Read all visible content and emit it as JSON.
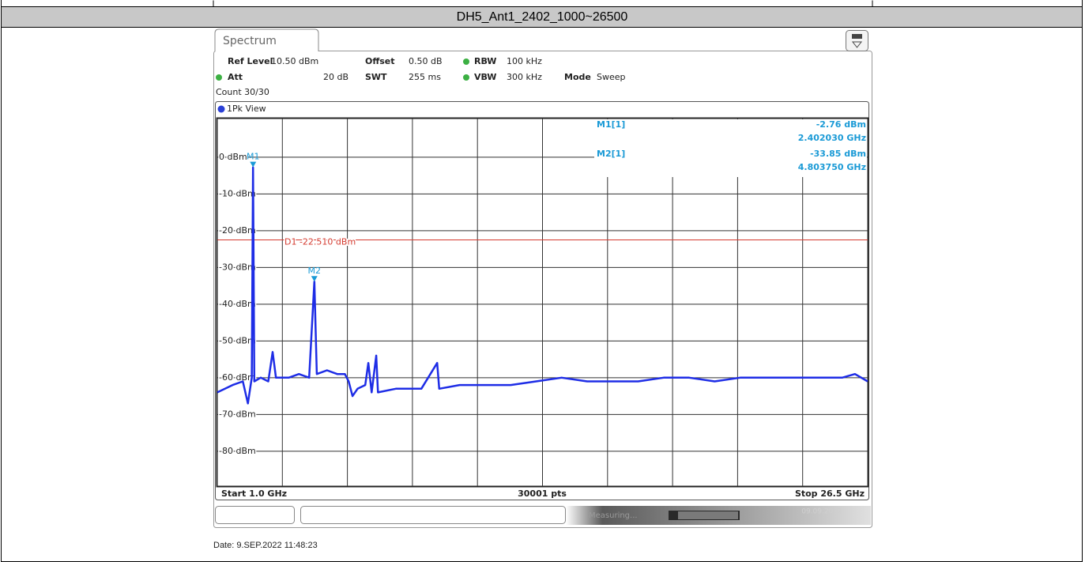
{
  "page": {
    "date": "Date: 9.SEP.2022 11:48:23"
  },
  "instrument": {
    "tab": "Spectrum",
    "settings": [
      {
        "label": "Ref Level",
        "value": "10.50 dBm"
      },
      {
        "label": "Offset",
        "value": "0.50 dB"
      },
      {
        "label": "RBW",
        "value": "100 kHz"
      },
      {
        "label": "Att",
        "value": "20 dB"
      },
      {
        "label": "SWT",
        "value": "255 ms"
      },
      {
        "label": "VBW",
        "value": "300 kHz"
      },
      {
        "label": "Mode",
        "value": "Sweep"
      }
    ],
    "count": "Count 30/30",
    "status": "Measuring...",
    "status_date": "09.09.2022"
  },
  "chart_data": {
    "type": "line",
    "title": "DH5_Ant1_2402_1000~26500",
    "view_label": "1Pk View",
    "x": [
      1.0,
      1.3,
      1.6,
      2.0,
      2.2,
      2.35,
      2.40203,
      2.45,
      2.7,
      3.0,
      3.17,
      3.3,
      3.8,
      4.2,
      4.6,
      4.80375,
      4.9,
      5.3,
      5.7,
      6.0,
      6.15,
      6.3,
      6.5,
      6.8,
      6.92,
      7.05,
      7.23,
      7.3,
      8.0,
      9.0,
      9.62,
      9.7,
      10.5,
      11.5,
      12.5,
      13.5,
      14.5,
      15.5,
      16.5,
      17.5,
      18.5,
      19.5,
      20.5,
      21.5,
      22.5,
      23.5,
      24.5,
      25.5,
      26.0,
      26.5
    ],
    "series": [
      {
        "color": "#1e2de6",
        "values": [
          -64,
          -63,
          -62,
          -61,
          -67,
          -60,
          -2.76,
          -61,
          -60,
          -61,
          -53,
          -60,
          -60,
          -59,
          -60,
          -33.85,
          -59,
          -58,
          -59,
          -59,
          -61,
          -65,
          -63,
          -62,
          -56,
          -64,
          -54,
          -64,
          -63,
          -63,
          -56,
          -63,
          -62,
          -62,
          -62,
          -61,
          -60,
          -61,
          -61,
          -61,
          -60,
          -60,
          -61,
          -60,
          -60,
          -60,
          -60,
          -60,
          -59,
          -61
        ]
      }
    ],
    "xlim": [
      1.0,
      26.5
    ],
    "ylim": [
      -89.5,
      10.5
    ],
    "xticks": [
      1.0,
      3.55,
      6.1,
      8.65,
      11.2,
      13.75,
      16.3,
      18.85,
      21.4,
      23.95,
      26.5
    ],
    "yticks": [
      {
        "value": 0,
        "label": "0 dBm"
      },
      {
        "value": -10,
        "label": "-10 dBm"
      },
      {
        "value": -20,
        "label": "-20 dBm"
      },
      {
        "value": -30,
        "label": "-30 dBm"
      },
      {
        "value": -40,
        "label": "-40 dBm"
      },
      {
        "value": -50,
        "label": "-50 dBm"
      },
      {
        "value": -60,
        "label": "-60 dBm"
      },
      {
        "value": -70,
        "label": "-70 dBm"
      },
      {
        "value": -80,
        "label": "-80 dBm"
      }
    ],
    "grid": true,
    "display_line": {
      "label": "D1 -22.510 dBm",
      "value": -22.51,
      "color": "#d43a2f"
    },
    "markers": [
      {
        "name": "M1",
        "readout": "M1[1]",
        "x": 2.40203,
        "value": -2.76,
        "value_label": "-2.76 dBm",
        "x_label": "2.402030 GHz"
      },
      {
        "name": "M2",
        "readout": "M2[1]",
        "x": 4.80375,
        "value": -33.85,
        "value_label": "-33.85 dBm",
        "x_label": "4.803750 GHz"
      }
    ],
    "start_label": "Start 1.0 GHz",
    "points_label": "30001 pts",
    "stop_label": "Stop 26.5 GHz"
  }
}
